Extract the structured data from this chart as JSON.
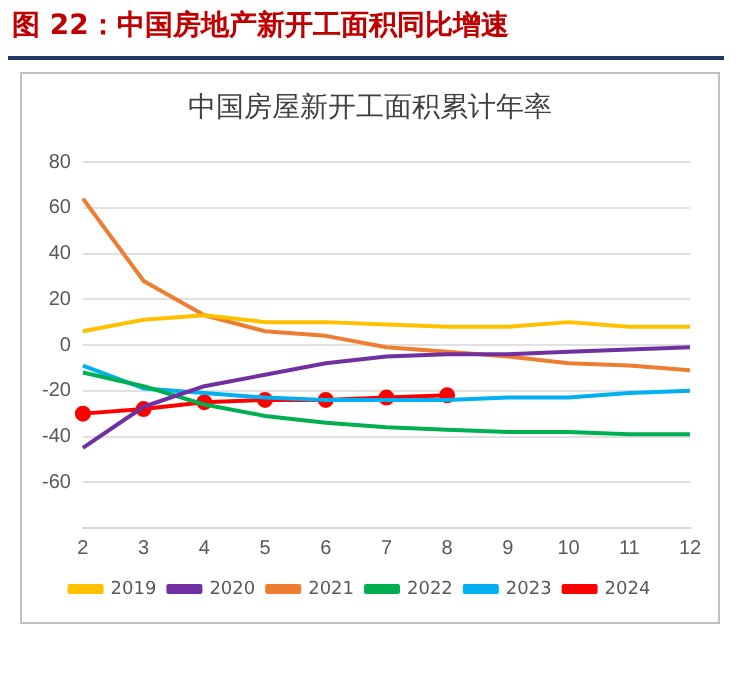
{
  "chart_data": {
    "type": "line",
    "title": "图 22：中国房地产新开工面积同比增速",
    "subtitle": "中国房屋新开工面积累计年率",
    "categories": [
      "2",
      "3",
      "4",
      "5",
      "6",
      "7",
      "8",
      "9",
      "10",
      "11",
      "12"
    ],
    "series": [
      {
        "name": "2019",
        "color": "#ffc000",
        "values": [
          6,
          11,
          13,
          10,
          10,
          9,
          8,
          8,
          10,
          8,
          8
        ]
      },
      {
        "name": "2020",
        "color": "#7030a0",
        "values": [
          -45,
          -27,
          -18,
          -13,
          -8,
          -5,
          -4,
          -4,
          -3,
          -2,
          -1
        ]
      },
      {
        "name": "2021",
        "color": "#ed7d31",
        "values": [
          64,
          28,
          13,
          6,
          4,
          -1,
          -3,
          -5,
          -8,
          -9,
          -11
        ]
      },
      {
        "name": "2022",
        "color": "#00b050",
        "values": [
          -12,
          -18,
          -26,
          -31,
          -34,
          -36,
          -37,
          -38,
          -38,
          -39,
          -39
        ]
      },
      {
        "name": "2023",
        "color": "#00b0f0",
        "values": [
          -9,
          -19,
          -21,
          -23,
          -24,
          -24,
          -24,
          -23,
          -23,
          -21,
          -20
        ]
      },
      {
        "name": "2024",
        "color": "#ff0000",
        "marker": "circle",
        "values": [
          -30,
          -28,
          -25,
          -24,
          -24,
          -23,
          -22,
          null,
          null,
          null,
          null
        ]
      }
    ],
    "ylim": [
      -80,
      80
    ],
    "yticks": [
      {
        "value": -80,
        "label": null
      },
      -60,
      -40,
      -20,
      0,
      20,
      40,
      60,
      80
    ],
    "grid": "y",
    "legend": "bottom",
    "marker": "none",
    "line_style": "solid"
  }
}
